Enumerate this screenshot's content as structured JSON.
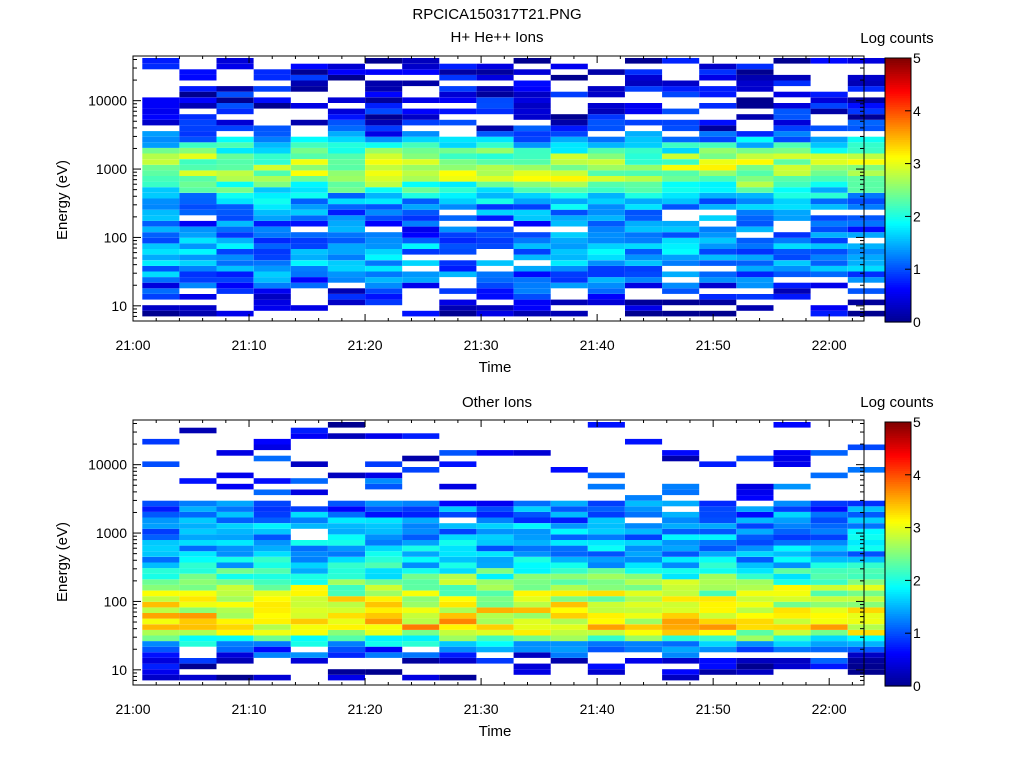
{
  "figure": {
    "title": "RPCICA150317T21.PNG"
  },
  "colormap": [
    "#00008f",
    "#0000ff",
    "#0080ff",
    "#00ffff",
    "#80ff80",
    "#ffff00",
    "#ff8000",
    "#ff0000",
    "#800000"
  ],
  "chart_data": [
    {
      "type": "heatmap",
      "title": "H+ He++ Ions",
      "xlabel": "Time",
      "ylabel": "Energy (eV)",
      "x_tick_labels": [
        "21:00",
        "21:10",
        "21:20",
        "21:30",
        "21:40",
        "21:50",
        "22:00"
      ],
      "xlim": [
        "21:00",
        "22:03"
      ],
      "y_scale": "log",
      "y_tick_labels": [
        "10",
        "100",
        "1000",
        "10000"
      ],
      "ylim": [
        6,
        45000
      ],
      "colorbar": {
        "label": "Log counts",
        "range": [
          0,
          5
        ],
        "tick_labels": [
          "0",
          "1",
          "2",
          "3",
          "4",
          "5"
        ]
      },
      "time_bins_min": [
        0.8,
        4,
        7.2,
        10.4,
        13.6,
        16.8,
        20,
        23.2,
        26.4,
        29.6,
        32.8,
        36,
        39.2,
        42.4,
        45.6,
        48.8,
        52,
        55.2,
        58.4,
        61.6
      ],
      "energy_profile": [
        {
          "e": 10,
          "logc": 0.3
        },
        {
          "e": 30,
          "logc": 1.2
        },
        {
          "e": 60,
          "logc": 1.4
        },
        {
          "e": 150,
          "logc": 1.0
        },
        {
          "e": 400,
          "logc": 1.6
        },
        {
          "e": 800,
          "logc": 2.8
        },
        {
          "e": 1600,
          "logc": 2.5
        },
        {
          "e": 4000,
          "logc": 0.6
        },
        {
          "e": 40000,
          "logc": 0.3
        }
      ]
    },
    {
      "type": "heatmap",
      "title": "Other Ions",
      "xlabel": "Time",
      "ylabel": "Energy (eV)",
      "x_tick_labels": [
        "21:00",
        "21:10",
        "21:20",
        "21:30",
        "21:40",
        "21:50",
        "22:00"
      ],
      "xlim": [
        "21:00",
        "22:03"
      ],
      "y_scale": "log",
      "y_tick_labels": [
        "10",
        "100",
        "1000",
        "10000"
      ],
      "ylim": [
        6,
        45000
      ],
      "colorbar": {
        "label": "Log counts",
        "range": [
          0,
          5
        ],
        "tick_labels": [
          "0",
          "1",
          "2",
          "3",
          "4",
          "5"
        ]
      },
      "time_bins_min": [
        0.8,
        4,
        7.2,
        10.4,
        13.6,
        16.8,
        20,
        23.2,
        26.4,
        29.6,
        32.8,
        36,
        39.2,
        42.4,
        45.6,
        48.8,
        52,
        55.2,
        58.4,
        61.6
      ],
      "energy_profile": [
        {
          "e": 10,
          "logc": 0.3
        },
        {
          "e": 20,
          "logc": 1.0
        },
        {
          "e": 40,
          "logc": 3.3
        },
        {
          "e": 60,
          "logc": 3.1
        },
        {
          "e": 150,
          "logc": 2.7
        },
        {
          "e": 400,
          "logc": 1.6
        },
        {
          "e": 1000,
          "logc": 1.4
        },
        {
          "e": 3000,
          "logc": 1.0
        },
        {
          "e": 40000,
          "logc": 0.3
        }
      ]
    }
  ]
}
